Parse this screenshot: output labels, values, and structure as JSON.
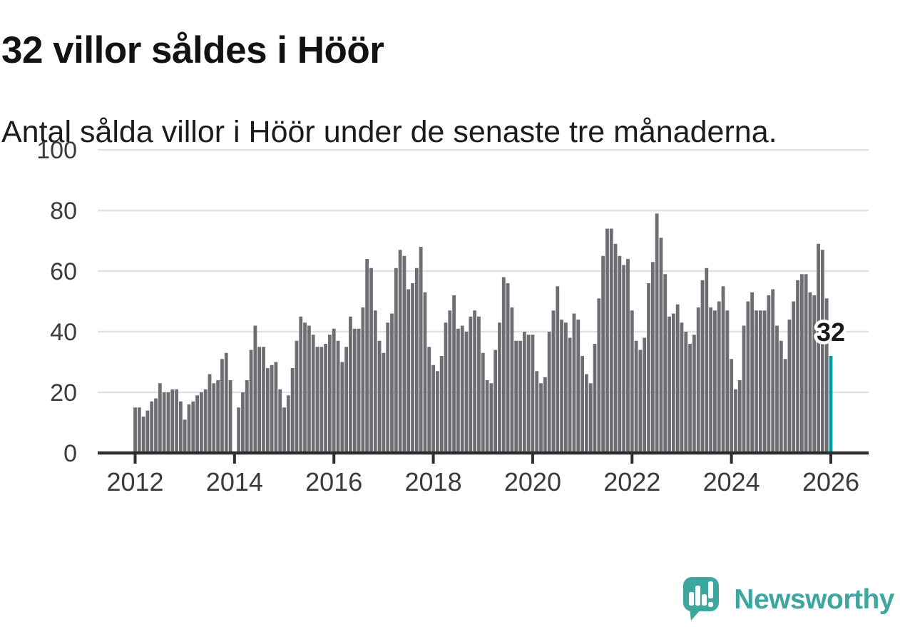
{
  "header": {
    "title": "32 villor såldes i Höör",
    "subtitle": "Antal sålda villor i Höör under de senaste tre månaderna."
  },
  "chart_data": {
    "type": "bar",
    "title": "32 villor såldes i Höör",
    "xlabel": "",
    "ylabel": "",
    "x_interval": "month",
    "x_start_month": "2012-01",
    "x_end_month": "2026-01",
    "ylim": [
      0,
      100
    ],
    "yticks": [
      0,
      20,
      40,
      60,
      80,
      100
    ],
    "xtick_labels": [
      "2012",
      "2014",
      "2016",
      "2018",
      "2020",
      "2022",
      "2024",
      "2026"
    ],
    "grid": "horizontal",
    "legend_position": "none",
    "values": [
      15,
      15,
      12,
      14,
      17,
      18,
      23,
      20,
      20,
      21,
      21,
      17,
      11,
      16,
      17,
      19,
      20,
      21,
      26,
      23,
      24,
      31,
      33,
      24,
      0,
      15,
      20,
      24,
      34,
      42,
      35,
      35,
      28,
      29,
      30,
      21,
      15,
      19,
      28,
      37,
      45,
      43,
      42,
      39,
      35,
      35,
      36,
      39,
      41,
      37,
      30,
      35,
      45,
      41,
      41,
      48,
      64,
      61,
      47,
      37,
      33,
      43,
      46,
      61,
      67,
      65,
      54,
      56,
      61,
      68,
      53,
      35,
      29,
      27,
      32,
      43,
      47,
      52,
      41,
      42,
      40,
      45,
      47,
      45,
      33,
      24,
      23,
      34,
      43,
      58,
      56,
      48,
      37,
      37,
      40,
      39,
      39,
      27,
      23,
      25,
      40,
      47,
      55,
      44,
      43,
      38,
      46,
      44,
      32,
      26,
      23,
      36,
      51,
      65,
      74,
      74,
      69,
      65,
      62,
      64,
      47,
      37,
      34,
      38,
      56,
      63,
      79,
      71,
      59,
      45,
      46,
      49,
      43,
      40,
      36,
      39,
      48,
      57,
      61,
      48,
      47,
      50,
      55,
      47,
      31,
      21,
      24,
      42,
      50,
      53,
      47,
      47,
      47,
      52,
      54,
      42,
      37,
      31,
      44,
      50,
      57,
      59,
      59,
      53,
      52,
      69,
      67,
      51,
      32
    ],
    "highlight": {
      "index": 168,
      "value": 32,
      "label": "32"
    },
    "colors": {
      "bar": "#6d6d73",
      "highlight_bar": "#009e9e",
      "gridline": "#e2e2e2",
      "axis": "#2e2e2e",
      "tick_label": "#3b3b3b",
      "annotation_text": "#1a1a1a",
      "annotation_halo": "#ffffff"
    }
  },
  "footer": {
    "brand": "Newsworthy",
    "brand_color": "#3EA69E"
  }
}
